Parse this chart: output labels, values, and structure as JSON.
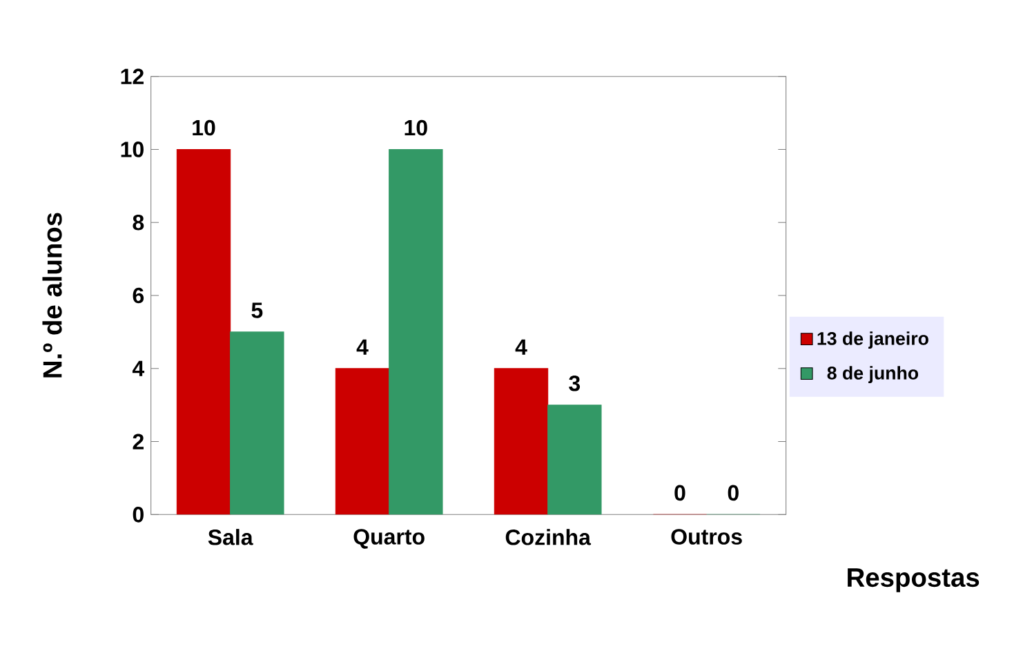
{
  "chart_data": {
    "type": "bar",
    "xlabel": "Respostas",
    "ylabel": "N.º de alunos",
    "categories": [
      "Sala",
      "Quarto",
      "Cozinha",
      "Outros"
    ],
    "series": [
      {
        "name": "13 de janeiro",
        "color": "#cc0000",
        "values": [
          10,
          4,
          4,
          0
        ]
      },
      {
        "name": "8 de junho",
        "color": "#339966",
        "values": [
          5,
          10,
          3,
          0
        ]
      }
    ],
    "ylim": [
      0,
      12
    ],
    "yticks": [
      0,
      2,
      4,
      6,
      8,
      10,
      12
    ],
    "data_labels": true,
    "legend": "right"
  }
}
